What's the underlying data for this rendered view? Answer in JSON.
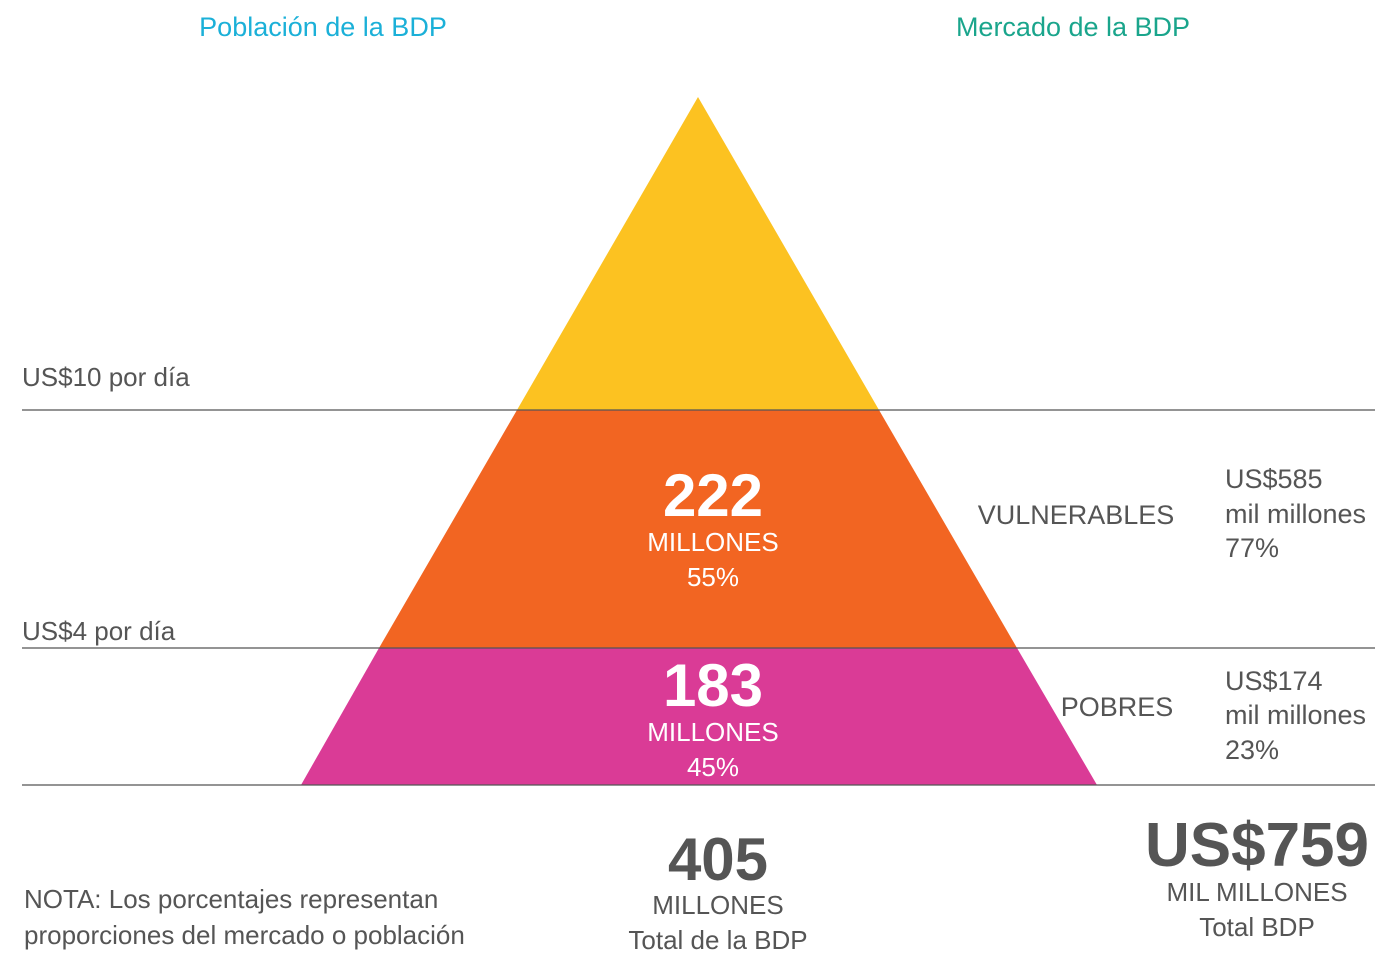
{
  "headers": {
    "left": "Población de la BDP",
    "right": "Mercado de la BDP"
  },
  "thresholds": [
    "US$10 por día",
    "US$4 por día"
  ],
  "segments": [
    {
      "number": "222",
      "unit": "MILLONES",
      "share": "55%",
      "label": "VULNERABLES",
      "market": [
        "US$585",
        "mil millones",
        "77%"
      ]
    },
    {
      "number": "183",
      "unit": "MILLONES",
      "share": "45%",
      "label": "POBRES",
      "market": [
        "US$174",
        "mil millones",
        "23%"
      ]
    }
  ],
  "total_population": {
    "number": "405",
    "unit": "MILLONES",
    "label": "Total de la BDP"
  },
  "total_market": {
    "number": "US$759",
    "unit": "MIL MILLONES",
    "label": "Total BDP"
  },
  "note": [
    "NOTA: Los porcentajes representan",
    "proporciones del mercado o población"
  ]
}
